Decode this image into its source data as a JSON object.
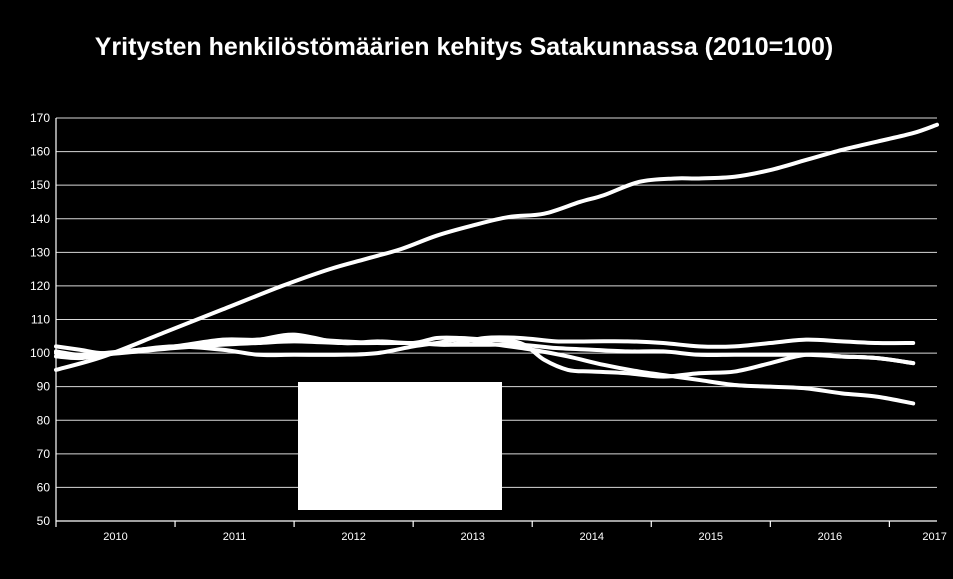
{
  "chart_data": {
    "type": "line",
    "title": "Yritysten henkilöstömäärien kehitys Satakunnassa (2010=100)",
    "xlabel": "",
    "ylabel": "",
    "ylim": [
      50,
      170
    ],
    "yticks": [
      50,
      60,
      70,
      80,
      90,
      100,
      110,
      120,
      130,
      140,
      150,
      160,
      170
    ],
    "xlim": [
      2009.6,
      2017.0
    ],
    "xtick_labels": [
      "2010",
      "2011",
      "2012",
      "2013",
      "2014",
      "2015",
      "2016",
      "2017"
    ],
    "grid": true,
    "legend": "none",
    "line_color": "#ffffff",
    "background_color": "#000000",
    "series": [
      {
        "x": [
          2009.6,
          2010.0,
          2010.5,
          2011.0,
          2011.5,
          2011.9,
          2012.2,
          2012.5,
          2012.8,
          2013.1,
          2013.4,
          2013.7,
          2014.0,
          2014.2,
          2014.5,
          2014.8,
          2015.0,
          2015.3,
          2015.6,
          2015.9,
          2016.2,
          2016.5,
          2016.8,
          2017.0
        ],
        "y": [
          95,
          99,
          106,
          113,
          120,
          125,
          128,
          131,
          135,
          138,
          140.5,
          141.5,
          145,
          147,
          151,
          152,
          152,
          152.5,
          154.5,
          157.5,
          160.5,
          163,
          165.5,
          168
        ]
      },
      {
        "x": [
          2009.6,
          2009.8,
          2010.0,
          2010.3,
          2010.6,
          2011.0,
          2011.3,
          2011.6,
          2011.8,
          2012.0,
          2012.3,
          2012.6,
          2012.9,
          2013.2,
          2013.5,
          2013.8,
          2014.1,
          2014.4,
          2014.7,
          2015.0,
          2015.3,
          2015.6,
          2015.9,
          2016.2,
          2016.5,
          2016.8
        ],
        "y": [
          102,
          101,
          100,
          101,
          102,
          103,
          104,
          104.5,
          104,
          103.5,
          103,
          103,
          102.5,
          104.5,
          104.5,
          103.5,
          103.5,
          103.5,
          103,
          102,
          102,
          103,
          104,
          103.5,
          103,
          103
        ]
      },
      {
        "x": [
          2009.6,
          2009.8,
          2010.0,
          2010.3,
          2010.6,
          2011.0,
          2011.3,
          2011.6,
          2012.0,
          2012.3,
          2012.6,
          2012.8,
          2013.0,
          2013.2,
          2013.5,
          2013.7,
          2013.9,
          2014.1,
          2014.4,
          2014.7,
          2015.0,
          2015.3,
          2015.6,
          2015.9,
          2016.2,
          2016.5,
          2016.8
        ],
        "y": [
          100.5,
          99.5,
          100,
          101,
          102,
          104,
          104,
          105.5,
          103,
          103.5,
          103,
          104.5,
          104.5,
          104,
          103,
          98,
          95,
          94.5,
          94,
          93,
          94,
          94.5,
          97,
          99.5,
          99,
          98.5,
          97
        ]
      },
      {
        "x": [
          2009.6,
          2009.8,
          2010.0,
          2010.3,
          2010.6,
          2011.0,
          2011.3,
          2011.6,
          2012.0,
          2012.3,
          2012.6,
          2012.8,
          2013.0,
          2013.3,
          2013.6,
          2013.9,
          2014.2,
          2014.5,
          2014.8,
          2015.0,
          2015.3,
          2015.6,
          2015.9,
          2016.2,
          2016.5,
          2016.8
        ],
        "y": [
          100,
          99,
          99.5,
          101,
          102,
          101,
          99.5,
          99.5,
          99.5,
          100,
          102,
          103,
          104,
          102.5,
          101,
          99,
          96.5,
          94.5,
          93,
          92,
          90.5,
          90,
          89.5,
          88,
          87,
          85
        ]
      },
      {
        "x": [
          2009.6,
          2009.8,
          2010.0,
          2010.3,
          2010.6,
          2011.0,
          2011.3,
          2011.6,
          2012.0,
          2012.3,
          2012.6,
          2012.9,
          2013.2,
          2013.5,
          2013.8,
          2014.1,
          2014.4,
          2014.7,
          2015.0,
          2015.3,
          2015.6,
          2015.9,
          2016.2,
          2016.5,
          2016.8
        ],
        "y": [
          99,
          98.5,
          99.5,
          100.5,
          101.5,
          102.5,
          103,
          103.5,
          103,
          103,
          103,
          102.5,
          102.5,
          102.5,
          101.5,
          101,
          100.5,
          100.5,
          99.5,
          99.5,
          99.5,
          99.5,
          99,
          98.5,
          97
        ]
      }
    ]
  }
}
